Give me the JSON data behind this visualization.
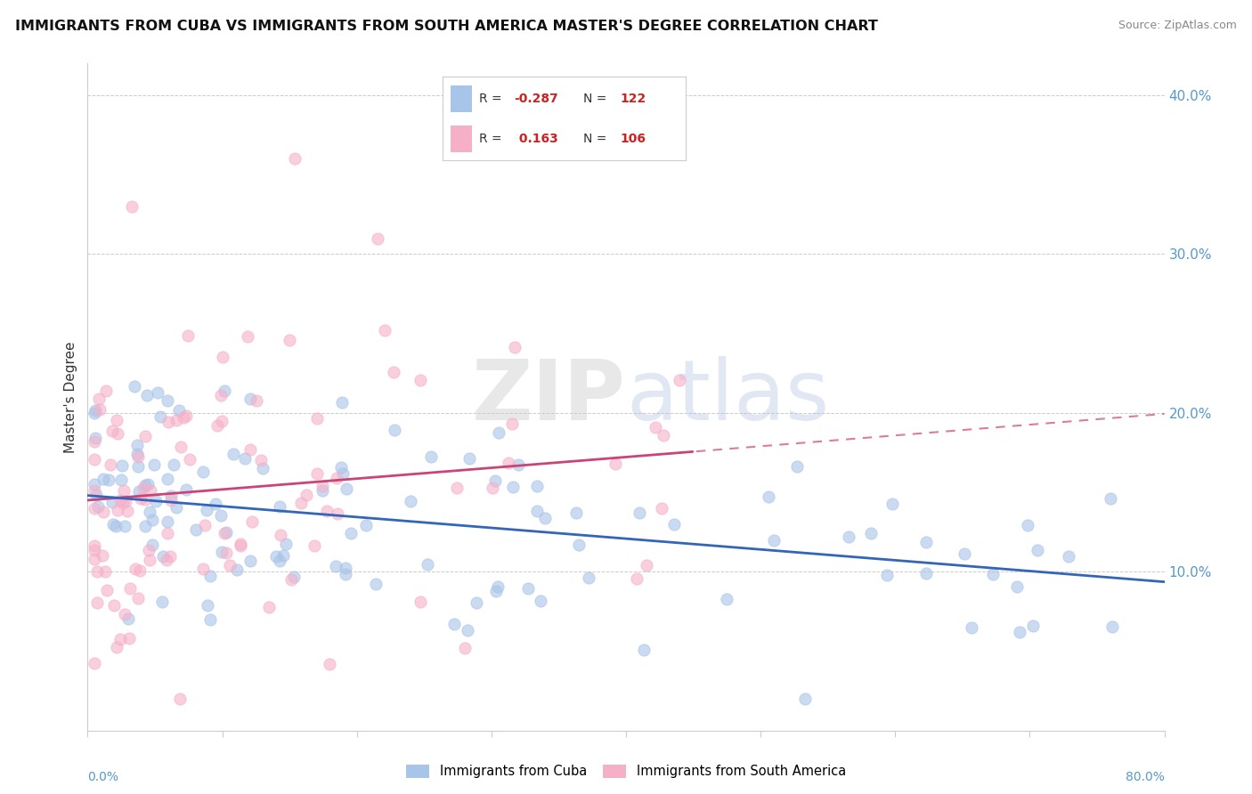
{
  "title": "IMMIGRANTS FROM CUBA VS IMMIGRANTS FROM SOUTH AMERICA MASTER'S DEGREE CORRELATION CHART",
  "source": "Source: ZipAtlas.com",
  "ylabel": "Master's Degree",
  "legend_label_blue": "Immigrants from Cuba",
  "legend_label_pink": "Immigrants from South America",
  "R_blue": -0.287,
  "N_blue": 122,
  "R_pink": 0.163,
  "N_pink": 106,
  "color_blue": "#a8c4e8",
  "color_pink": "#f5b0c8",
  "line_color_blue": "#3366bb",
  "line_color_pink": "#cc4477",
  "watermark_zip": "ZIP",
  "watermark_atlas": "atlas",
  "xlim": [
    0.0,
    0.8
  ],
  "ylim": [
    0.0,
    0.42
  ],
  "right_yticks": [
    0.1,
    0.2,
    0.3,
    0.4
  ],
  "right_ytick_labels": [
    "10.0%",
    "20.0%",
    "30.0%",
    "40.0%"
  ],
  "blue_intercept": 0.148,
  "blue_slope": -0.068,
  "pink_intercept": 0.145,
  "pink_slope": 0.068
}
